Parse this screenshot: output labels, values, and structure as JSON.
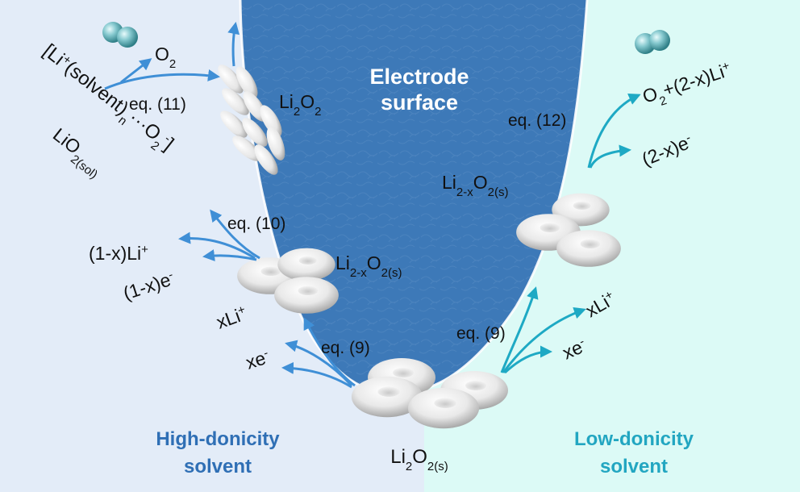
{
  "colors": {
    "left_bg": "#e3ecf8",
    "right_bg": "#dcfaf6",
    "electrode": "#3d79b8",
    "left_arrow": "#3f8fd6",
    "right_arrow": "#1ea9c4",
    "high_label": "#2f6fb5",
    "low_label": "#22a6c1",
    "o2_sphere": "#7fc6cc"
  },
  "icons": [
    "o2-molecule-icon",
    "li2o2-particle-icon",
    "toroid-particle-icon"
  ],
  "electrode": {
    "line1": "Electrode",
    "line2": "surface"
  },
  "solvents": {
    "high": {
      "line1": "High-donicity",
      "line2": "solvent"
    },
    "low": {
      "line1": "Low-donicity",
      "line2": "solvent"
    }
  },
  "left": {
    "o2": {
      "main": "O",
      "sub": "2"
    },
    "eq11": "eq. (11)",
    "li2o2": {
      "main1": "Li",
      "sub1": "2",
      "main2": "O",
      "sub2": "2"
    },
    "complex": {
      "p1": "[Li",
      "sup1": "+",
      "p2": "(solvent)",
      "sub1": "n",
      "p3": "···O",
      "sub2": "2",
      "sup2": "-",
      "p4": "]"
    },
    "lio2sol": {
      "main": "LiO",
      "sub": "2(sol)"
    },
    "eq10": "eq. (10)",
    "li_ion": {
      "main": "(1-x)Li",
      "sup": "+"
    },
    "electron": {
      "main": "(1-x)e",
      "sup": "-"
    },
    "li2xo2": {
      "main1": "Li",
      "sub1": "2-x",
      "main2": "O",
      "sub2": "2(s)"
    },
    "xli": {
      "main": "xLi",
      "sup": "+"
    },
    "xe": {
      "main": "xe",
      "sup": "-"
    },
    "eq9": "eq. (9)"
  },
  "right": {
    "eq12": "eq. (12)",
    "o2li": {
      "p1": "O",
      "sub1": "2",
      "p2": "+(2-x)Li",
      "sup1": "+"
    },
    "electron": {
      "main": "(2-x)e",
      "sup": "-"
    },
    "li2xo2": {
      "main1": "Li",
      "sub1": "2-x",
      "main2": "O",
      "sub2": "2(s)"
    },
    "eq9": "eq. (9)",
    "xli": {
      "main": "xLi",
      "sup": "+"
    },
    "xe": {
      "main": "xe",
      "sup": "-"
    }
  },
  "bottom": {
    "main1": "Li",
    "sub1": "2",
    "main2": "O",
    "sub2": "2(s)"
  }
}
